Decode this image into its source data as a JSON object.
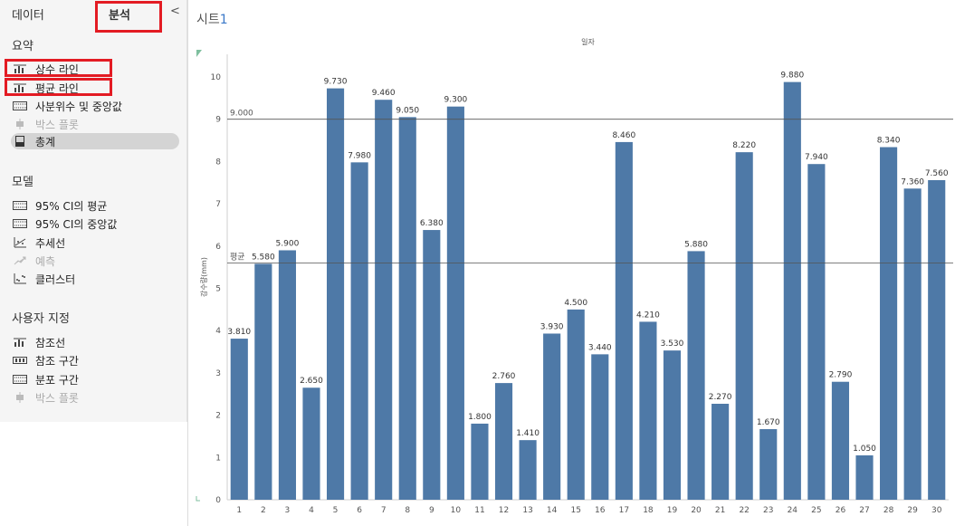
{
  "pane": {
    "tabs": {
      "data": "데이터",
      "analytics": "분석"
    },
    "collapse_glyph": "<",
    "sections": [
      {
        "title": "요약",
        "items": [
          {
            "label": "상수 라인",
            "icon": "reference-line-icon",
            "state": "normal"
          },
          {
            "label": "평균 라인",
            "icon": "reference-line-icon",
            "state": "normal"
          },
          {
            "label": "사분위수 및 중앙값",
            "icon": "distribution-band-icon",
            "state": "normal"
          },
          {
            "label": "박스 플롯",
            "icon": "box-plot-icon",
            "state": "disabled"
          },
          {
            "label": "총계",
            "icon": "totals-icon",
            "state": "selected"
          }
        ]
      },
      {
        "title": "모델",
        "items": [
          {
            "label": "95% CI의 평균",
            "icon": "distribution-band-icon",
            "state": "normal"
          },
          {
            "label": "95% CI의 중앙값",
            "icon": "distribution-band-icon",
            "state": "normal"
          },
          {
            "label": "추세선",
            "icon": "trend-line-icon",
            "state": "normal"
          },
          {
            "label": "예측",
            "icon": "forecast-icon",
            "state": "disabled"
          },
          {
            "label": "클러스터",
            "icon": "cluster-icon",
            "state": "normal"
          }
        ]
      },
      {
        "title": "사용자 지정",
        "items": [
          {
            "label": "참조선",
            "icon": "reference-line-icon",
            "state": "normal"
          },
          {
            "label": "참조 구간",
            "icon": "reference-band-icon",
            "state": "normal"
          },
          {
            "label": "분포 구간",
            "icon": "distribution-band-icon",
            "state": "normal"
          },
          {
            "label": "박스 플롯",
            "icon": "box-plot-icon",
            "state": "disabled"
          }
        ]
      }
    ]
  },
  "sheet": {
    "title": "시트",
    "cursor": "1"
  },
  "colors": {
    "bar": "#4e79a7",
    "highlight": "#e31b23",
    "ref_line": "#555555"
  },
  "chart_data": {
    "type": "bar",
    "title": "",
    "header": "일자",
    "xlabel": "",
    "ylabel": "강수량(mm)",
    "ylim": [
      0,
      10
    ],
    "yticks": [
      0,
      1,
      2,
      3,
      4,
      5,
      6,
      7,
      8,
      9,
      10
    ],
    "categories": [
      "1",
      "2",
      "3",
      "4",
      "5",
      "6",
      "7",
      "8",
      "9",
      "10",
      "11",
      "12",
      "13",
      "14",
      "15",
      "16",
      "17",
      "18",
      "19",
      "20",
      "21",
      "22",
      "23",
      "24",
      "25",
      "26",
      "27",
      "28",
      "29",
      "30"
    ],
    "values": [
      3.81,
      5.58,
      5.9,
      2.65,
      9.73,
      7.98,
      9.46,
      9.05,
      6.38,
      9.3,
      1.8,
      2.76,
      1.41,
      3.93,
      4.5,
      3.44,
      8.46,
      4.21,
      3.53,
      5.88,
      2.27,
      8.22,
      1.67,
      9.88,
      7.94,
      2.79,
      1.05,
      8.34,
      7.36,
      7.56
    ],
    "value_labels": [
      "3.810",
      "5.580",
      "5.900",
      "2.650",
      "9.730",
      "7.980",
      "9.460",
      "9.050",
      "6.380",
      "9.300",
      "1.800",
      "2.760",
      "1.410",
      "3.930",
      "4.500",
      "3.440",
      "8.460",
      "4.210",
      "3.530",
      "5.880",
      "2.270",
      "8.220",
      "1.670",
      "9.880",
      "7.940",
      "2.790",
      "1.050",
      "8.340",
      "7.360",
      "7.560"
    ],
    "reference_lines": [
      {
        "value": 9.0,
        "label": "9.000"
      },
      {
        "value": 5.6,
        "label": "평균"
      }
    ],
    "grid": false
  }
}
